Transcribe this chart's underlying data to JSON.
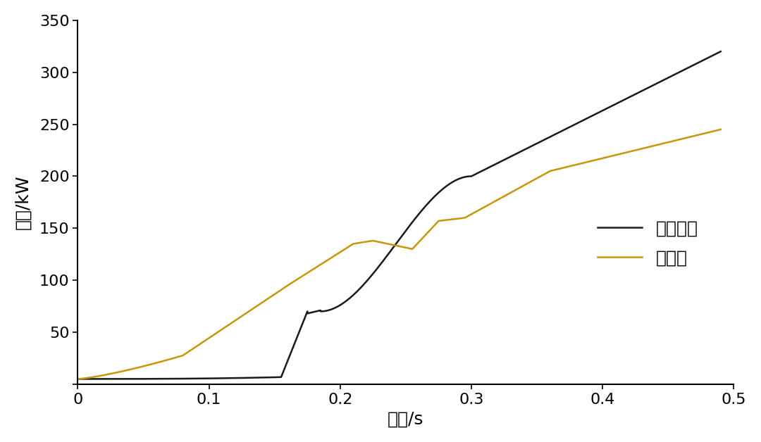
{
  "title": "",
  "xlabel": "时间/s",
  "ylabel": "功率/kW",
  "xlim": [
    0,
    0.5
  ],
  "ylim": [
    0,
    350
  ],
  "xticks": [
    0,
    0.1,
    0.2,
    0.3,
    0.4,
    0.5
  ],
  "yticks": [
    0,
    50,
    100,
    150,
    200,
    250,
    300,
    350
  ],
  "legend": [
    "超级电容",
    "蓄电池"
  ],
  "line_black_color": "#1a1a1a",
  "line_orange_color": "#c8960a",
  "background_color": "#ffffff",
  "font_size": 16,
  "legend_font_size": 18
}
